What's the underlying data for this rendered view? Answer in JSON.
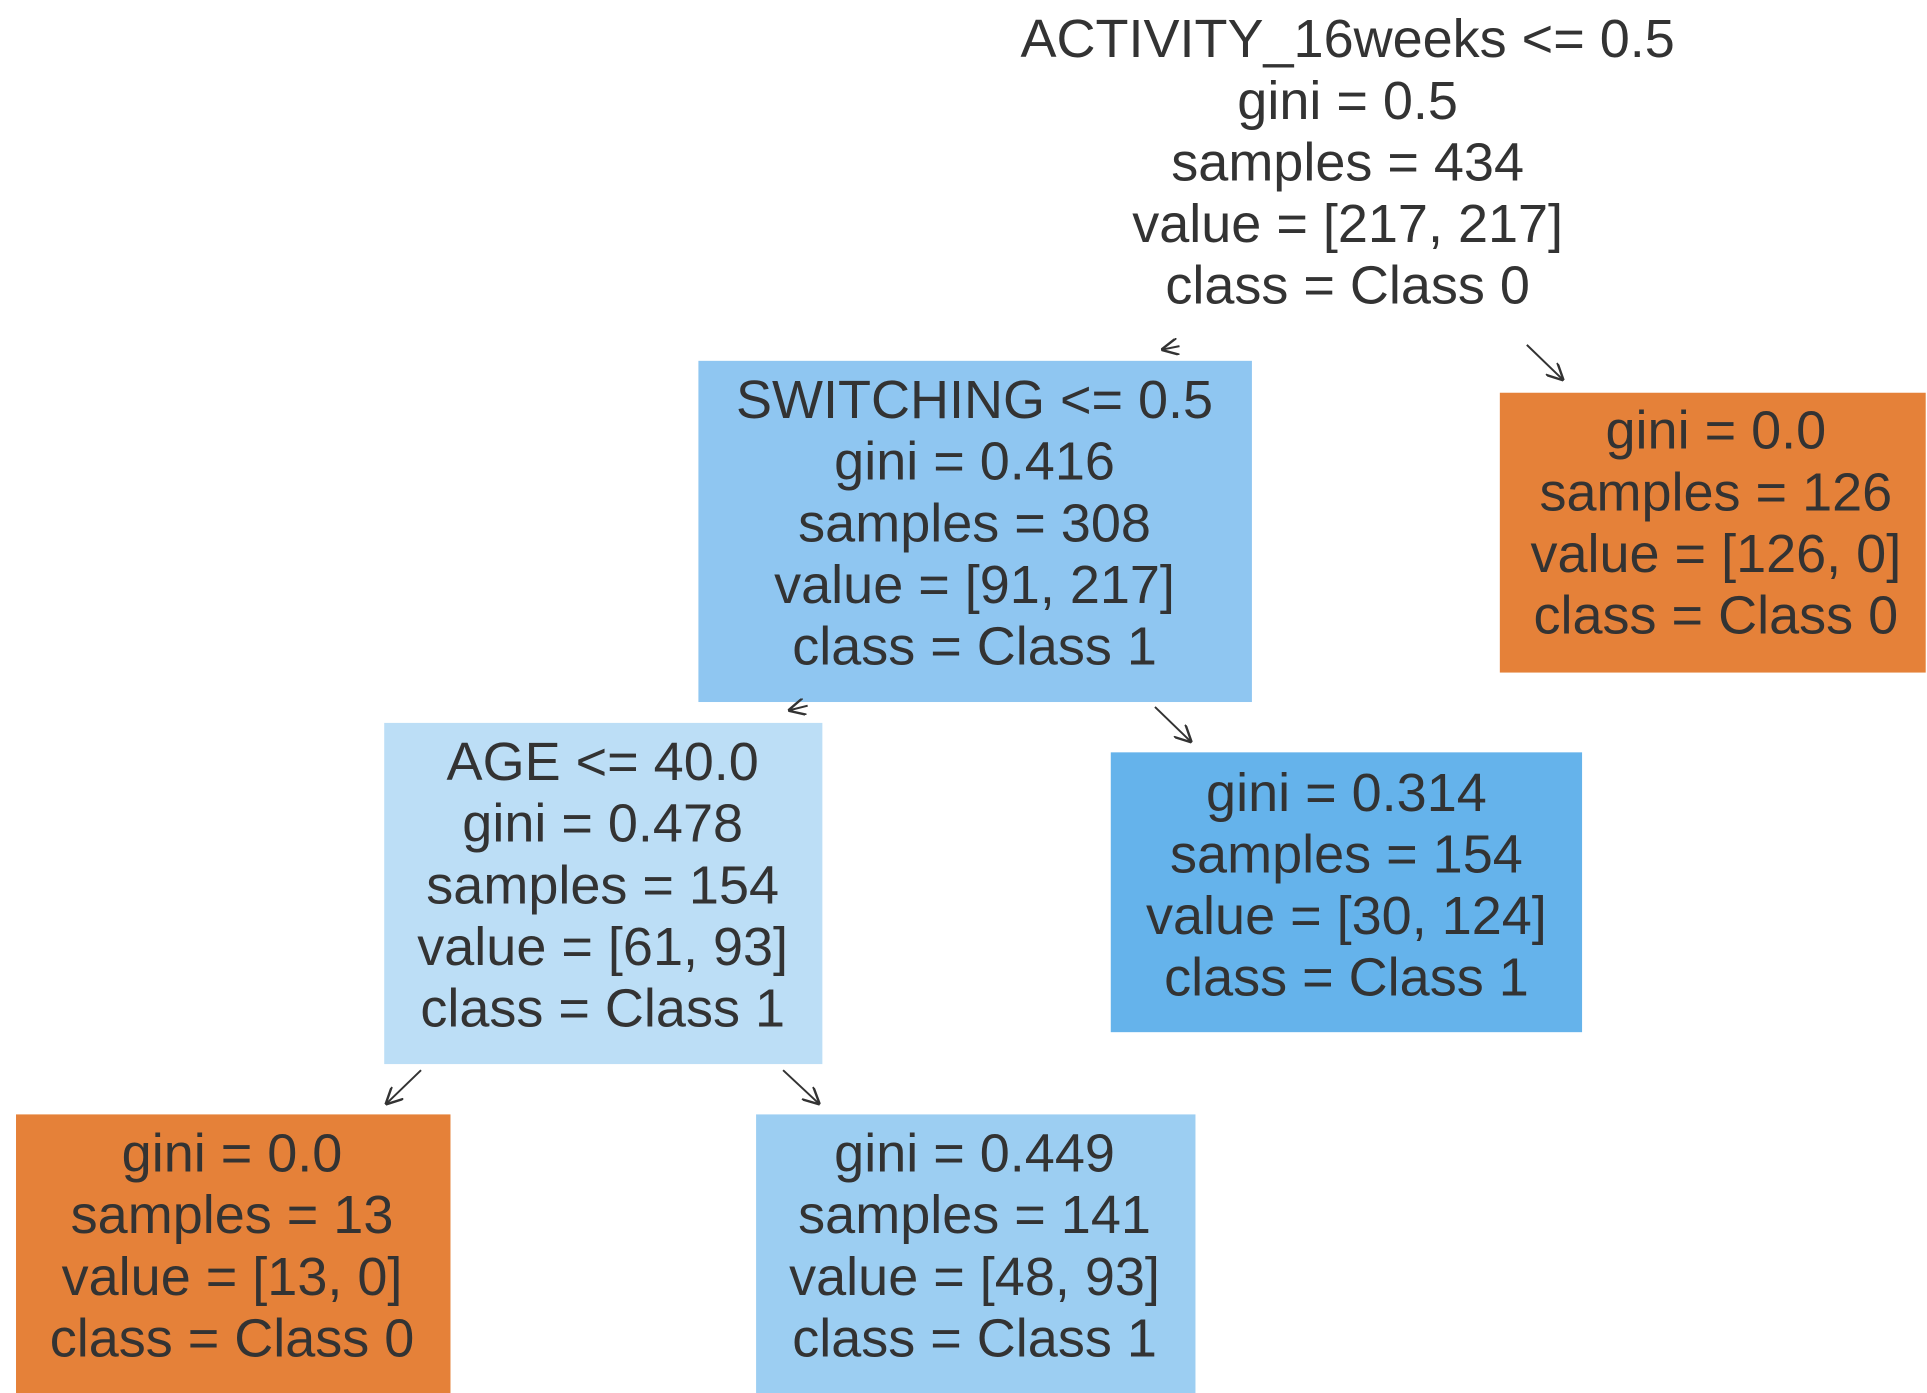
{
  "nodes": [
    {
      "lines": [
        "ACTIVITY_16weeks <= 0.5",
        "gini = 0.5",
        "samples = 434",
        "value = [217, 217]",
        "class = Class 0"
      ]
    },
    {
      "lines": [
        "SWITCHING <= 0.5",
        "gini = 0.416",
        "samples = 308",
        "value = [91, 217]",
        "class = Class 1"
      ]
    },
    {
      "lines": [
        "gini = 0.0",
        "samples = 126",
        "value = [126, 0]",
        "class = Class 0"
      ]
    },
    {
      "lines": [
        "AGE <= 40.0",
        "gini = 0.478",
        "samples = 154",
        "value = [61, 93]",
        "class = Class 1"
      ]
    },
    {
      "lines": [
        "gini = 0.314",
        "samples = 154",
        "value = [30, 124]",
        "class = Class 1"
      ]
    },
    {
      "lines": [
        "gini = 0.0",
        "samples = 13",
        "value = [13, 0]",
        "class = Class 0"
      ]
    },
    {
      "lines": [
        "gini = 0.449",
        "samples = 141",
        "value = [48, 93]",
        "class = Class 1"
      ]
    }
  ]
}
